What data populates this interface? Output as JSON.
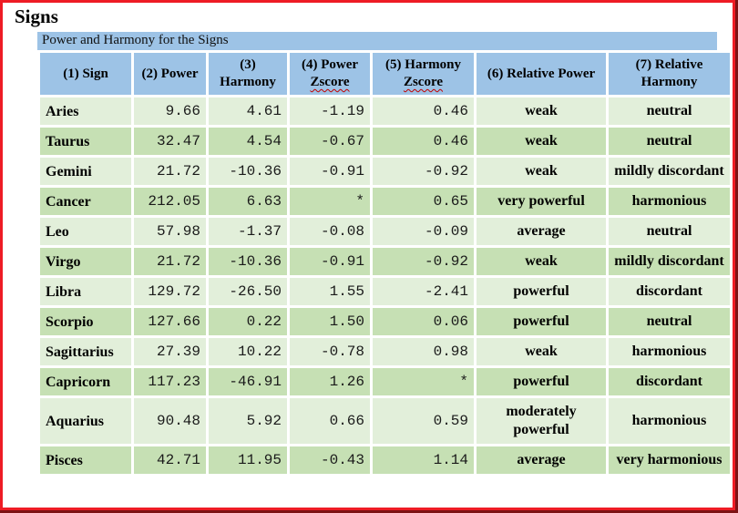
{
  "page_title": "Signs",
  "frame": {
    "border_color": "#ee1c25",
    "shadow_color": "#7c1315"
  },
  "table": {
    "caption": "Power and Harmony for the Signs",
    "header_bg": "#9dc3e6",
    "row_bg_light": "#e2efda",
    "row_bg_dark": "#c6e0b4",
    "squiggle_color": "#c00000",
    "columns": [
      {
        "key": "sign",
        "lines": [
          "(1) Sign"
        ]
      },
      {
        "key": "power",
        "lines": [
          "(2) Power"
        ]
      },
      {
        "key": "harmony",
        "lines": [
          "(3)",
          "Harmony"
        ]
      },
      {
        "key": "power_zscore",
        "lines": [
          "(4) Power",
          "Zscore"
        ],
        "squiggle": true
      },
      {
        "key": "harmony_zscore",
        "lines": [
          "(5) Harmony",
          "Zscore"
        ],
        "squiggle": true
      },
      {
        "key": "relative_power",
        "lines": [
          "(6) Relative Power"
        ]
      },
      {
        "key": "relative_harmony",
        "lines": [
          "(7) Relative",
          "Harmony"
        ]
      }
    ],
    "rows": [
      {
        "sign": "Aries",
        "power": "9.66",
        "harmony": "4.61",
        "power_zscore": "-1.19",
        "harmony_zscore": "0.46",
        "relative_power": "weak",
        "relative_harmony": "neutral",
        "shade": "light"
      },
      {
        "sign": "Taurus",
        "power": "32.47",
        "harmony": "4.54",
        "power_zscore": "-0.67",
        "harmony_zscore": "0.46",
        "relative_power": "weak",
        "relative_harmony": "neutral",
        "shade": "dark"
      },
      {
        "sign": "Gemini",
        "power": "21.72",
        "harmony": "-10.36",
        "power_zscore": "-0.91",
        "harmony_zscore": "-0.92",
        "relative_power": "weak",
        "relative_harmony": "mildly discordant",
        "shade": "light"
      },
      {
        "sign": "Cancer",
        "power": "212.05",
        "harmony": "6.63",
        "power_zscore": "*",
        "harmony_zscore": "0.65",
        "relative_power": "very powerful",
        "relative_harmony": "harmonious",
        "shade": "dark"
      },
      {
        "sign": "Leo",
        "power": "57.98",
        "harmony": "-1.37",
        "power_zscore": "-0.08",
        "harmony_zscore": "-0.09",
        "relative_power": "average",
        "relative_harmony": "neutral",
        "shade": "light"
      },
      {
        "sign": "Virgo",
        "power": "21.72",
        "harmony": "-10.36",
        "power_zscore": "-0.91",
        "harmony_zscore": "-0.92",
        "relative_power": "weak",
        "relative_harmony": "mildly discordant",
        "shade": "dark"
      },
      {
        "sign": "Libra",
        "power": "129.72",
        "harmony": "-26.50",
        "power_zscore": "1.55",
        "harmony_zscore": "-2.41",
        "relative_power": "powerful",
        "relative_harmony": "discordant",
        "shade": "light"
      },
      {
        "sign": "Scorpio",
        "power": "127.66",
        "harmony": "0.22",
        "power_zscore": "1.50",
        "harmony_zscore": "0.06",
        "relative_power": "powerful",
        "relative_harmony": "neutral",
        "shade": "dark"
      },
      {
        "sign": "Sagittarius",
        "power": "27.39",
        "harmony": "10.22",
        "power_zscore": "-0.78",
        "harmony_zscore": "0.98",
        "relative_power": "weak",
        "relative_harmony": "harmonious",
        "shade": "light"
      },
      {
        "sign": "Capricorn",
        "power": "117.23",
        "harmony": "-46.91",
        "power_zscore": "1.26",
        "harmony_zscore": "*",
        "relative_power": "powerful",
        "relative_harmony": "discordant",
        "shade": "dark"
      },
      {
        "sign": "Aquarius",
        "power": "90.48",
        "harmony": "5.92",
        "power_zscore": "0.66",
        "harmony_zscore": "0.59",
        "relative_power": "moderately powerful",
        "relative_harmony": "harmonious",
        "shade": "light"
      },
      {
        "sign": "Pisces",
        "power": "42.71",
        "harmony": "11.95",
        "power_zscore": "-0.43",
        "harmony_zscore": "1.14",
        "relative_power": "average",
        "relative_harmony": "very harmonious",
        "shade": "dark"
      }
    ]
  }
}
